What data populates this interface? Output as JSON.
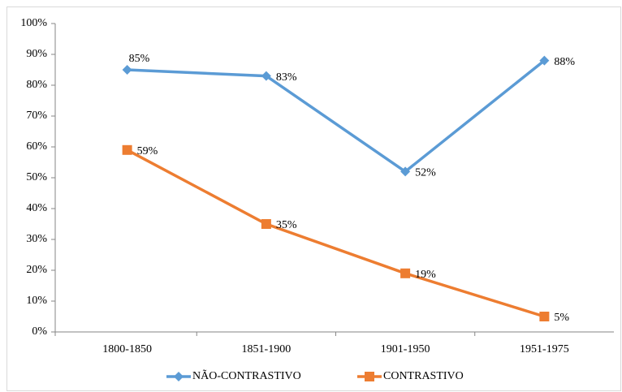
{
  "chart_data": {
    "type": "line",
    "categories": [
      "1800-1850",
      "1851-1900",
      "1901-1950",
      "1951-1975"
    ],
    "series": [
      {
        "name": "NÃO-CONTRASTIVO",
        "color": "#5b9bd5",
        "marker": "diamond",
        "values": [
          85,
          83,
          52,
          88
        ],
        "value_labels": [
          "85%",
          "83%",
          "52%",
          "88%"
        ]
      },
      {
        "name": "CONTRASTIVO",
        "color": "#ed7d31",
        "marker": "square",
        "values": [
          59,
          35,
          19,
          5
        ],
        "value_labels": [
          "59%",
          "35%",
          "19%",
          "5%"
        ]
      }
    ],
    "ylim": [
      0,
      100
    ],
    "yticks": [
      {
        "value": 0,
        "label": "0%"
      },
      {
        "value": 10,
        "label": "10%"
      },
      {
        "value": 20,
        "label": "20%"
      },
      {
        "value": 30,
        "label": "30%"
      },
      {
        "value": 40,
        "label": "40%"
      },
      {
        "value": 50,
        "label": "50%"
      },
      {
        "value": 60,
        "label": "60%"
      },
      {
        "value": 70,
        "label": "70%"
      },
      {
        "value": 80,
        "label": "80%"
      },
      {
        "value": 90,
        "label": "90%"
      },
      {
        "value": 100,
        "label": "100%"
      }
    ],
    "legend": "bottom"
  }
}
